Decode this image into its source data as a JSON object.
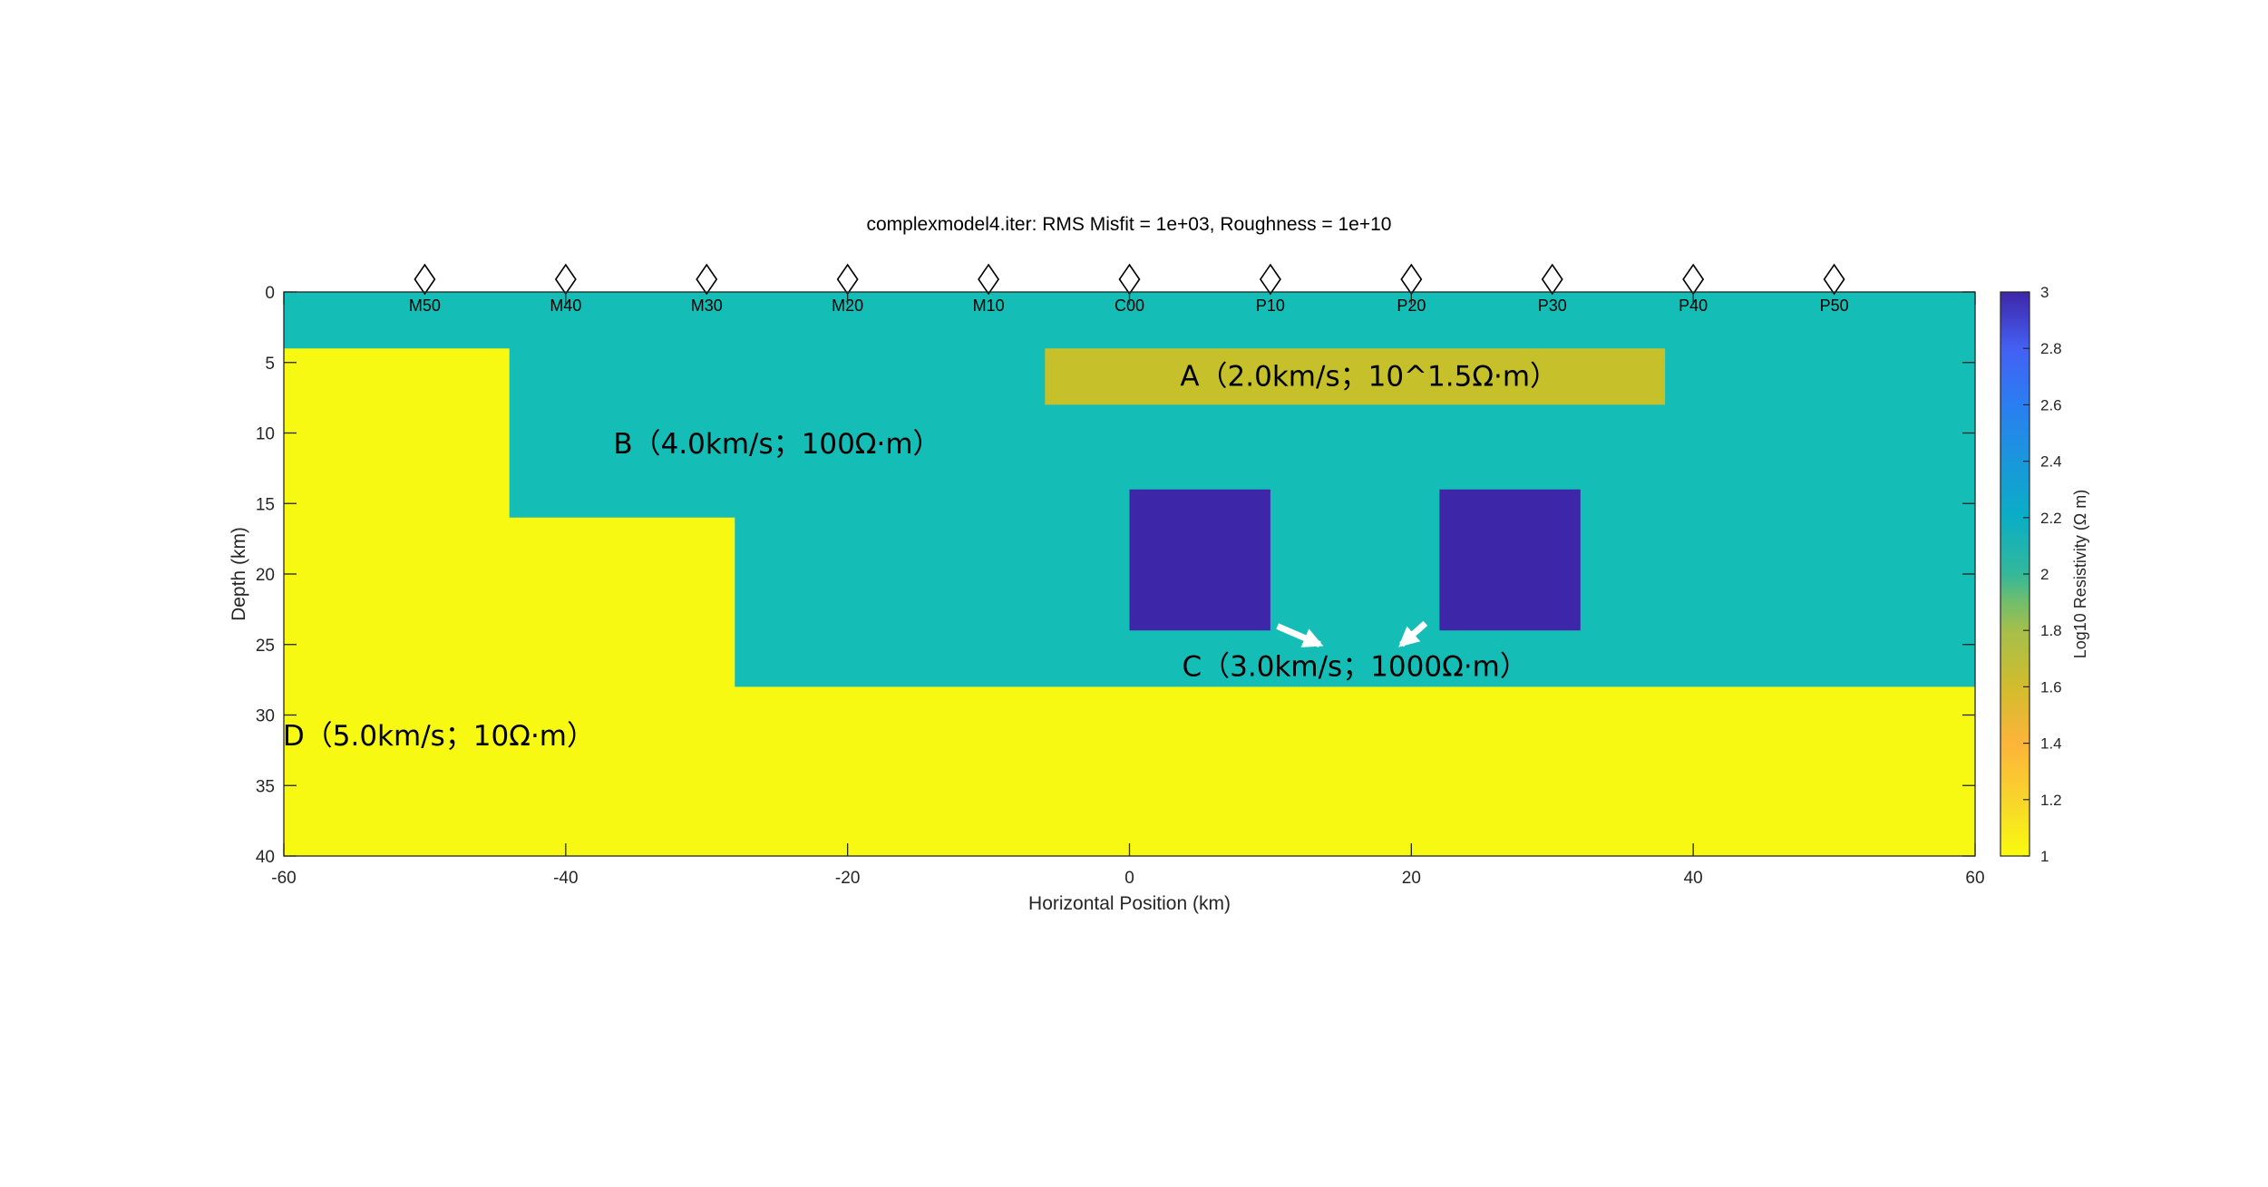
{
  "chart_data": {
    "type": "heatmap",
    "title": "complexmodel4.iter: RMS Misfit =  1e+03,   Roughness = 1e+10",
    "xlabel": "Horizontal Position (km)",
    "ylabel": "Depth (km)",
    "xlim": [
      -60,
      60
    ],
    "ylim": [
      0,
      40
    ],
    "y_reversed": true,
    "xticks": [
      -60,
      -40,
      -20,
      0,
      20,
      40,
      60
    ],
    "yticks": [
      0,
      5,
      10,
      15,
      20,
      25,
      30,
      35,
      40
    ],
    "colorbar": {
      "label": "Log10 Resistivity (Ω m)",
      "range": [
        1,
        3
      ],
      "ticks": [
        1,
        1.2,
        1.4,
        1.6,
        1.8,
        2,
        2.2,
        2.4,
        2.6,
        2.8,
        3
      ],
      "colormap": "parula"
    },
    "stations": [
      {
        "name": "M50",
        "x": -50
      },
      {
        "name": "M40",
        "x": -40
      },
      {
        "name": "M30",
        "x": -30
      },
      {
        "name": "M20",
        "x": -20
      },
      {
        "name": "M10",
        "x": -10
      },
      {
        "name": "C00",
        "x": 0
      },
      {
        "name": "P10",
        "x": 10
      },
      {
        "name": "P20",
        "x": 20
      },
      {
        "name": "P30",
        "x": 30
      },
      {
        "name": "P40",
        "x": 40
      },
      {
        "name": "P50",
        "x": 50
      }
    ],
    "regions": [
      {
        "name": "background",
        "log10_resistivity": 2,
        "polygon": [
          [
            -60,
            0
          ],
          [
            60,
            0
          ],
          [
            60,
            40
          ],
          [
            -60,
            40
          ]
        ]
      },
      {
        "name": "D",
        "log10_resistivity": 1,
        "polygon": [
          [
            -60,
            4
          ],
          [
            -44,
            4
          ],
          [
            -44,
            16
          ],
          [
            -28,
            16
          ],
          [
            -28,
            28
          ],
          [
            60,
            28
          ],
          [
            60,
            40
          ],
          [
            -60,
            40
          ]
        ]
      },
      {
        "name": "A",
        "log10_resistivity": 1.5,
        "polygon": [
          [
            -6,
            4
          ],
          [
            38,
            4
          ],
          [
            38,
            8
          ],
          [
            -6,
            8
          ]
        ]
      },
      {
        "name": "C-left",
        "log10_resistivity": 3,
        "polygon": [
          [
            0,
            14
          ],
          [
            10,
            14
          ],
          [
            10,
            24
          ],
          [
            0,
            24
          ]
        ]
      },
      {
        "name": "C-right",
        "log10_resistivity": 3,
        "polygon": [
          [
            22,
            14
          ],
          [
            32,
            14
          ],
          [
            32,
            24
          ],
          [
            22,
            24
          ]
        ]
      }
    ],
    "annotations": [
      {
        "name": "A",
        "text": "A（2.0km/s；10^1.5Ω·m）",
        "x": 17,
        "y": 6
      },
      {
        "name": "B",
        "text": "B（4.0km/s；100Ω·m）",
        "x": -25,
        "y": 10.8
      },
      {
        "name": "C",
        "text": "C（3.0km/s；1000Ω·m）",
        "x": 16,
        "y": 26.6
      },
      {
        "name": "D",
        "text": "D（5.0km/s；10Ω·m）",
        "x": -49,
        "y": 31.5
      }
    ],
    "arrows": [
      {
        "from": [
          10.5,
          23.7
        ],
        "to": [
          13.5,
          25.0
        ]
      },
      {
        "from": [
          21.0,
          23.5
        ],
        "to": [
          19.3,
          25.0
        ]
      }
    ]
  },
  "colors": {
    "background_cell": "#14BDB6",
    "region_D": "#F8F912",
    "region_A": "#C6C12B",
    "region_C": "#3E26A8"
  }
}
